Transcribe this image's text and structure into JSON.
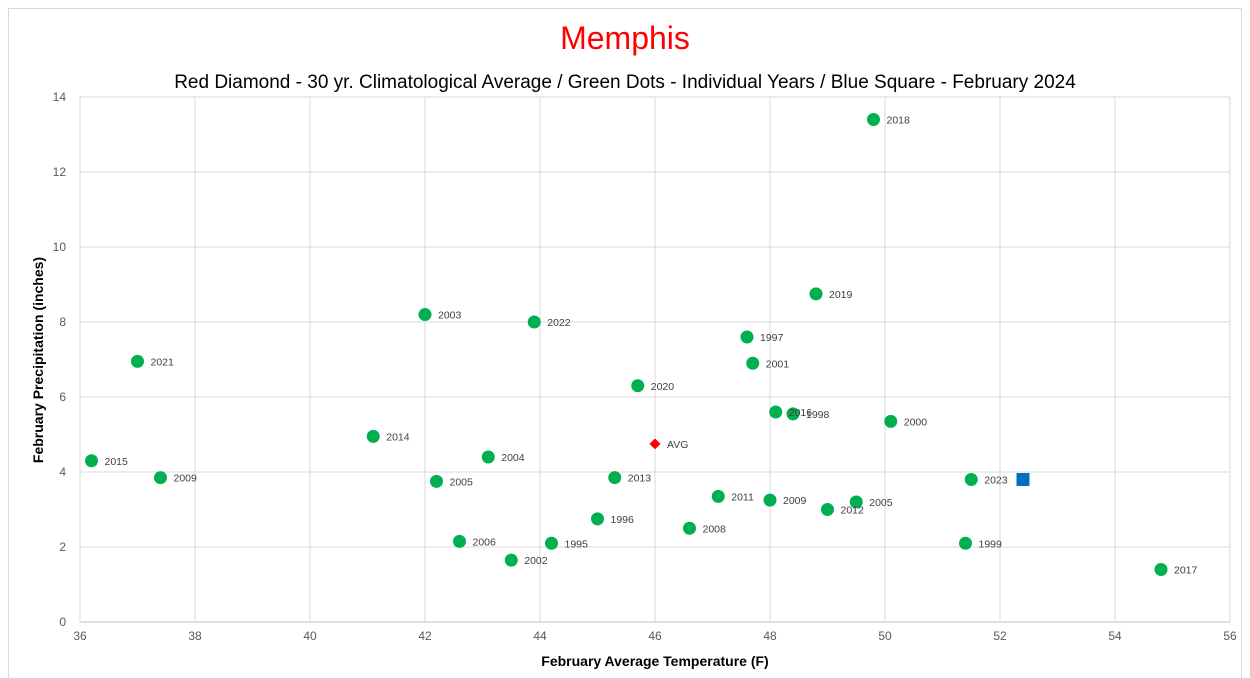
{
  "chart_data": {
    "type": "scatter",
    "title": "Memphis",
    "subtitle": "Red Diamond - 30 yr. Climatological Average / Green Dots - Individual Years / Blue Square - February 2024",
    "xlabel": "February Average Temperature (F)",
    "ylabel": "February Precipitation (inches)",
    "xlim": [
      36,
      56
    ],
    "ylim": [
      0,
      14
    ],
    "xticks": [
      36,
      38,
      40,
      42,
      44,
      46,
      48,
      50,
      52,
      54,
      56
    ],
    "yticks": [
      0,
      2,
      4,
      6,
      8,
      10,
      12,
      14
    ],
    "grid": true,
    "colors": {
      "years": "#00b050",
      "average": "#ff0000",
      "current": "#0070c0",
      "title": "#ff0000"
    },
    "series": [
      {
        "marker": "circle",
        "points": [
          {
            "x": 49.8,
            "y": 13.4,
            "label": "2018"
          },
          {
            "x": 48.8,
            "y": 8.75,
            "label": "2019"
          },
          {
            "x": 42.0,
            "y": 8.2,
            "label": "2003"
          },
          {
            "x": 43.9,
            "y": 8.0,
            "label": "2022"
          },
          {
            "x": 47.6,
            "y": 7.6,
            "label": "1997"
          },
          {
            "x": 37.0,
            "y": 6.95,
            "label": "2021"
          },
          {
            "x": 47.7,
            "y": 6.9,
            "label": "2001"
          },
          {
            "x": 45.7,
            "y": 6.3,
            "label": "2020"
          },
          {
            "x": 48.1,
            "y": 5.6,
            "label": "2016"
          },
          {
            "x": 48.4,
            "y": 5.55,
            "label": "1998"
          },
          {
            "x": 50.1,
            "y": 5.35,
            "label": "2000"
          },
          {
            "x": 41.1,
            "y": 4.95,
            "label": "2014"
          },
          {
            "x": 43.1,
            "y": 4.4,
            "label": "2004"
          },
          {
            "x": 36.2,
            "y": 4.3,
            "label": "2015"
          },
          {
            "x": 37.4,
            "y": 3.85,
            "label": "2009"
          },
          {
            "x": 45.3,
            "y": 3.85,
            "label": "2013"
          },
          {
            "x": 51.5,
            "y": 3.8,
            "label": "2023"
          },
          {
            "x": 42.2,
            "y": 3.75,
            "label": "2005"
          },
          {
            "x": 47.1,
            "y": 3.35,
            "label": "2011"
          },
          {
            "x": 48.0,
            "y": 3.25,
            "label": "2009"
          },
          {
            "x": 49.5,
            "y": 3.2,
            "label": "2005"
          },
          {
            "x": 49.0,
            "y": 3.0,
            "label": "2012"
          },
          {
            "x": 45.0,
            "y": 2.75,
            "label": "1996"
          },
          {
            "x": 46.6,
            "y": 2.5,
            "label": "2008"
          },
          {
            "x": 42.6,
            "y": 2.15,
            "label": "2006"
          },
          {
            "x": 44.2,
            "y": 2.1,
            "label": "1995"
          },
          {
            "x": 51.4,
            "y": 2.1,
            "label": "1999"
          },
          {
            "x": 43.5,
            "y": 1.65,
            "label": "2002"
          },
          {
            "x": 54.8,
            "y": 1.4,
            "label": "2017"
          }
        ]
      },
      {
        "marker": "diamond",
        "points": [
          {
            "x": 46.0,
            "y": 4.75,
            "label": "AVG"
          }
        ]
      },
      {
        "marker": "square",
        "points": [
          {
            "x": 52.4,
            "y": 3.8,
            "label": ""
          }
        ]
      }
    ]
  }
}
